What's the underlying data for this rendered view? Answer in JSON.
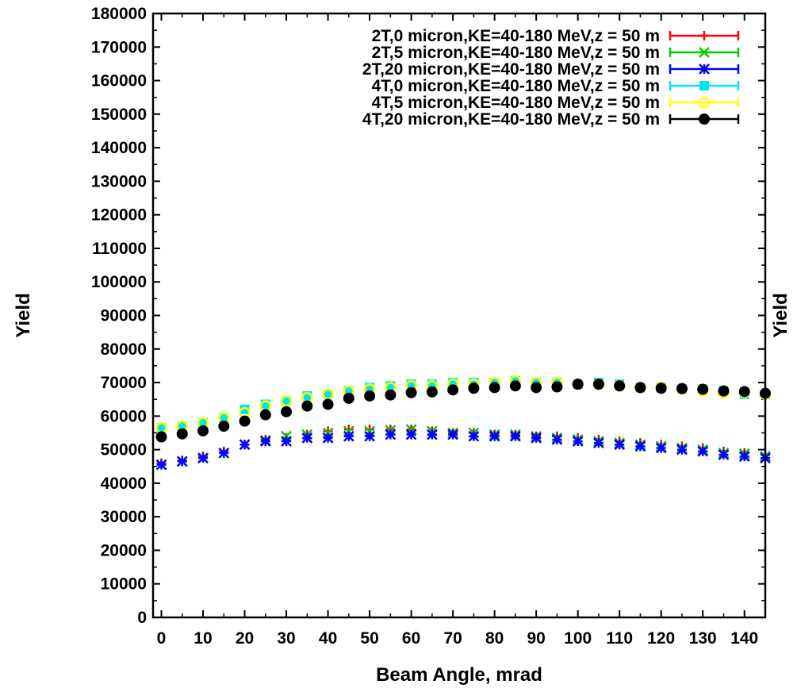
{
  "chart_data": {
    "type": "scatter",
    "title": "",
    "xlabel": "Beam Angle, mrad",
    "ylabel": "Yield",
    "y2label": "Yield",
    "xlim": [
      -2,
      145
    ],
    "ylim": [
      0,
      180000
    ],
    "x_ticks": [
      0,
      10,
      20,
      30,
      40,
      50,
      60,
      70,
      80,
      90,
      100,
      110,
      120,
      130,
      140
    ],
    "y_ticks": [
      0,
      10000,
      20000,
      30000,
      40000,
      50000,
      60000,
      70000,
      80000,
      90000,
      100000,
      110000,
      120000,
      130000,
      140000,
      150000,
      160000,
      170000,
      180000
    ],
    "grid": false,
    "legend_position": "top-right",
    "x": [
      0,
      5,
      10,
      15,
      20,
      25,
      30,
      35,
      40,
      45,
      50,
      55,
      60,
      65,
      70,
      75,
      80,
      85,
      90,
      95,
      100,
      105,
      110,
      115,
      120,
      125,
      130,
      135,
      140,
      145
    ],
    "series": [
      {
        "name": "2T,0 micron,KE=40-180 MeV,z = 50 m",
        "color": "#ff0000",
        "marker": "plus",
        "values": [
          46000,
          46800,
          48000,
          49500,
          51500,
          53000,
          53500,
          54500,
          55500,
          56000,
          56000,
          56000,
          56000,
          55500,
          55000,
          55000,
          54500,
          54500,
          54000,
          54000,
          53500,
          53000,
          52500,
          52000,
          51500,
          51000,
          50500,
          49500,
          49000,
          48500
        ]
      },
      {
        "name": "2T,5 micron,KE=40-180 MeV,z = 50 m",
        "color": "#00cc00",
        "marker": "x",
        "values": [
          45500,
          46500,
          47500,
          49000,
          51500,
          52800,
          54000,
          54500,
          55000,
          55500,
          55500,
          55800,
          56000,
          55500,
          55000,
          55000,
          54500,
          54500,
          54000,
          53500,
          53000,
          52500,
          52000,
          51500,
          51000,
          50500,
          50000,
          49000,
          48800,
          48000
        ]
      },
      {
        "name": "2T,20 micron,KE=40-180 MeV,z = 50 m",
        "color": "#0000ff",
        "marker": "star",
        "values": [
          45500,
          46500,
          47500,
          49000,
          51500,
          52500,
          52500,
          53500,
          53500,
          54000,
          54000,
          54500,
          54500,
          54500,
          54500,
          54000,
          54000,
          54000,
          53500,
          53000,
          52500,
          52000,
          51500,
          51000,
          50500,
          50000,
          49500,
          48500,
          48000,
          47500
        ]
      },
      {
        "name": "4T,0 micron,KE=40-180 MeV,z = 50 m",
        "color": "#00e5ee",
        "marker": "square",
        "values": [
          56500,
          57000,
          58000,
          59500,
          62000,
          63500,
          64500,
          66000,
          66500,
          67500,
          68500,
          69000,
          69500,
          69500,
          70000,
          70000,
          70000,
          70500,
          70000,
          70000,
          69500,
          70000,
          69500,
          68500,
          68500,
          68000,
          68000,
          67500,
          66500,
          66500
        ]
      },
      {
        "name": "4T,5 micron,KE=40-180 MeV,z = 50 m",
        "color": "#ffff00",
        "marker": "circle",
        "values": [
          56500,
          57000,
          58000,
          59500,
          61000,
          63000,
          64500,
          65500,
          66500,
          67500,
          68000,
          68500,
          69000,
          69000,
          69500,
          69500,
          70000,
          70500,
          70000,
          70000,
          69500,
          69500,
          69000,
          68500,
          68500,
          68000,
          67500,
          67000,
          67000,
          66500
        ]
      },
      {
        "name": "4T,20 micron,KE=40-180 MeV,z = 50 m",
        "color": "#000000",
        "marker": "filled-circle",
        "values": [
          53800,
          54700,
          55600,
          57000,
          58500,
          60400,
          61300,
          63000,
          63500,
          65300,
          66000,
          66300,
          67000,
          67200,
          67800,
          68300,
          68500,
          69000,
          68500,
          68700,
          69500,
          69500,
          69000,
          68500,
          68300,
          68200,
          68000,
          67500,
          67300,
          66800
        ]
      }
    ]
  }
}
